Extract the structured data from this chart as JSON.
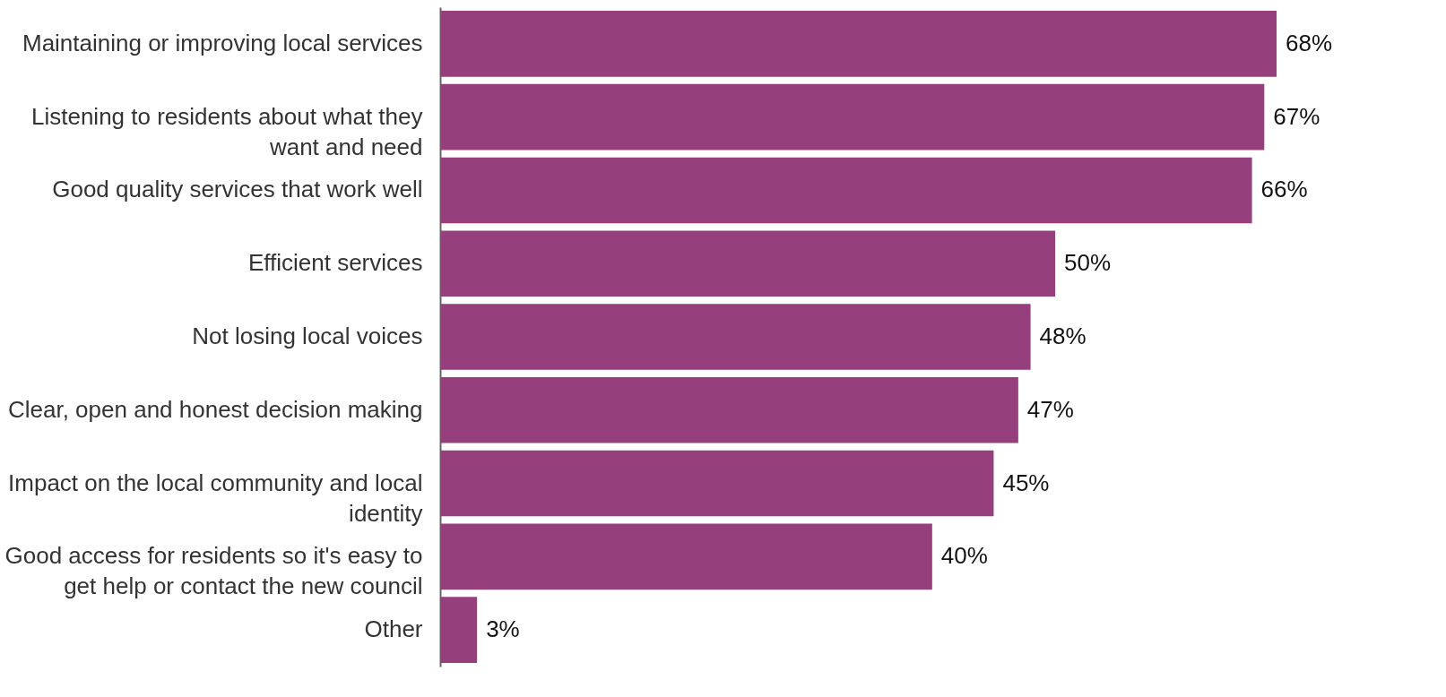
{
  "chart_data": {
    "type": "bar",
    "orientation": "horizontal",
    "categories": [
      "Maintaining or improving local services",
      "Listening to residents about what they want and need",
      "Good quality services that work well",
      "Efficient services",
      "Not losing local voices",
      "Clear, open and honest decision making",
      "Impact on the local community and local identity",
      "Good access for residents so it's easy to get help or contact the new council",
      "Other"
    ],
    "values": [
      68,
      67,
      66,
      50,
      48,
      47,
      45,
      40,
      3
    ],
    "value_labels": [
      "68%",
      "67%",
      "66%",
      "50%",
      "48%",
      "47%",
      "45%",
      "40%",
      "3%"
    ],
    "color": "#953f7d",
    "grid": false
  }
}
